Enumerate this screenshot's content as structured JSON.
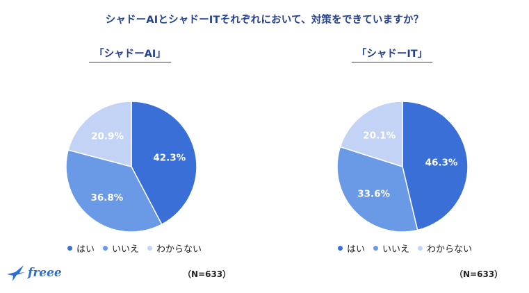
{
  "title": "シャドーAIとシャドーITそれぞれにおいて、対策をできていますか？",
  "note": "（N=633）",
  "logo_text": "freee",
  "colors": {
    "yes": "#3a6fd8",
    "no": "#6a99e6",
    "unknown": "#c3d3f5",
    "title": "#24418f"
  },
  "legend": [
    {
      "label": "はい",
      "color": "#3a6fd8"
    },
    {
      "label": "いいえ",
      "color": "#6a99e6"
    },
    {
      "label": "わからない",
      "color": "#c3d3f5"
    }
  ],
  "chart_data": [
    {
      "type": "pie",
      "title": "「シャドーAI」",
      "categories": [
        "はい",
        "いいえ",
        "わからない"
      ],
      "values": [
        42.3,
        36.8,
        20.9
      ],
      "labels": [
        "42.3%",
        "36.8%",
        "20.9%"
      ],
      "colors": [
        "#3a6fd8",
        "#6a99e6",
        "#c3d3f5"
      ],
      "start": "12-o'clock, clockwise",
      "legend_placement": "bottom"
    },
    {
      "type": "pie",
      "title": "「シャドーIT」",
      "categories": [
        "はい",
        "いいえ",
        "わからない"
      ],
      "values": [
        46.3,
        33.6,
        20.1
      ],
      "labels": [
        "46.3%",
        "33.6%",
        "20.1%"
      ],
      "colors": [
        "#3a6fd8",
        "#6a99e6",
        "#c3d3f5"
      ],
      "start": "12-o'clock, clockwise",
      "legend_placement": "bottom"
    }
  ]
}
